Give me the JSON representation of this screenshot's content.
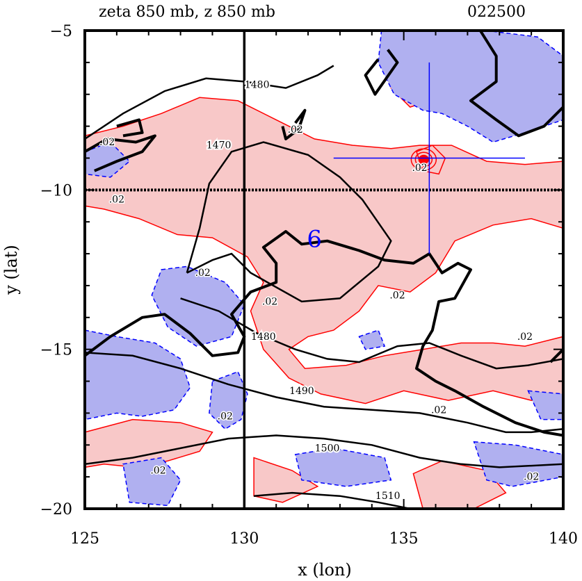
{
  "chart_data": {
    "type": "contour",
    "title": "zeta 850 mb, z 850 mb",
    "time_label": "022500",
    "xlabel": "x (lon)",
    "ylabel": "y (lat)",
    "xlim": [
      125,
      140
    ],
    "ylim": [
      -20,
      -5
    ],
    "x_ticks": [
      125,
      130,
      135,
      140
    ],
    "x_tick_labels": [
      "125",
      "130",
      "135",
      "140"
    ],
    "y_ticks": [
      -5,
      -10,
      -15,
      -20
    ],
    "y_tick_labels": [
      "−5",
      "−10",
      "−15",
      "−20"
    ],
    "reference_lines": {
      "lon": 130,
      "lat": -10
    },
    "storm_symbol": {
      "label": "6",
      "lon": 132.2,
      "lat": -11.6,
      "color": "#0000ff"
    },
    "crosshair": {
      "lon": 135.8,
      "lat": -9.0,
      "lon_range": [
        132.8,
        138.8
      ],
      "lat_range": [
        -12.0,
        -6.0
      ],
      "color": "#0000ff"
    },
    "fill_colors": {
      "positive": "#f8c8c8",
      "negative": "#b0b0f0",
      "positive_line": "#ff0000",
      "negative_line": "#0000ff"
    },
    "height_contours": [
      {
        "value": 1470,
        "label": "1470",
        "label_lon": 129.2,
        "label_lat": -8.7,
        "points": [
          [
            128.2,
            -12.6
          ],
          [
            128.6,
            -11.2
          ],
          [
            128.9,
            -9.8
          ],
          [
            129.6,
            -8.8
          ],
          [
            130.6,
            -8.5
          ],
          [
            132.0,
            -8.9
          ],
          [
            133.0,
            -9.6
          ],
          [
            133.7,
            -10.3
          ],
          [
            134.6,
            -11.6
          ],
          [
            134.2,
            -12.4
          ],
          [
            133.0,
            -13.4
          ],
          [
            131.8,
            -13.5
          ],
          [
            130.2,
            -12.6
          ],
          [
            129.6,
            -12.0
          ],
          [
            129.0,
            -12.2
          ],
          [
            128.2,
            -12.6
          ]
        ]
      },
      {
        "value": 1480,
        "label": "1480",
        "label_lon": 130.4,
        "label_lat": -6.8,
        "points": [
          [
            125.0,
            -8.4
          ],
          [
            126.2,
            -7.6
          ],
          [
            127.5,
            -6.9
          ],
          [
            128.8,
            -6.5
          ],
          [
            130.0,
            -6.6
          ],
          [
            131.3,
            -6.8
          ],
          [
            132.3,
            -6.4
          ],
          [
            132.8,
            -6.1
          ]
        ]
      },
      {
        "value": 1480,
        "label": "1480",
        "label_lon": 130.6,
        "label_lat": -14.7,
        "points": [
          [
            128.0,
            -13.4
          ],
          [
            129.2,
            -13.8
          ],
          [
            130.4,
            -14.5
          ],
          [
            131.6,
            -15.0
          ],
          [
            132.6,
            -15.3
          ],
          [
            133.6,
            -15.4
          ],
          [
            134.8,
            -14.9
          ],
          [
            135.8,
            -14.8
          ],
          [
            136.8,
            -15.2
          ],
          [
            137.9,
            -15.6
          ],
          [
            138.9,
            -15.5
          ],
          [
            140.0,
            -15.3
          ]
        ]
      },
      {
        "value": 1490,
        "label": "1490",
        "label_lon": 131.8,
        "label_lat": -16.4,
        "points": [
          [
            125.0,
            -15.1
          ],
          [
            126.5,
            -15.2
          ],
          [
            128.0,
            -15.6
          ],
          [
            129.5,
            -16.1
          ],
          [
            131.0,
            -16.5
          ],
          [
            132.5,
            -16.8
          ],
          [
            134.0,
            -16.9
          ],
          [
            135.5,
            -17.0
          ],
          [
            137.0,
            -17.3
          ],
          [
            138.2,
            -17.6
          ],
          [
            139.0,
            -17.6
          ],
          [
            140.0,
            -17.5
          ]
        ]
      },
      {
        "value": 1500,
        "label": "1500",
        "label_lon": 132.6,
        "label_lat": -18.2,
        "points": [
          [
            125.0,
            -18.6
          ],
          [
            126.5,
            -18.4
          ],
          [
            128.0,
            -18.1
          ],
          [
            129.5,
            -17.8
          ],
          [
            131.0,
            -17.7
          ],
          [
            132.5,
            -17.8
          ],
          [
            134.0,
            -18.0
          ],
          [
            135.5,
            -18.4
          ],
          [
            136.8,
            -18.6
          ],
          [
            138.0,
            -18.7
          ],
          [
            140.0,
            -18.6
          ]
        ]
      },
      {
        "value": 1510,
        "label": "1510",
        "label_lon": 134.5,
        "label_lat": -19.7,
        "points": [
          [
            130.3,
            -19.6
          ],
          [
            131.5,
            -19.5
          ],
          [
            133.0,
            -19.6
          ],
          [
            134.2,
            -19.8
          ],
          [
            135.2,
            -20.0
          ]
        ]
      }
    ],
    "vorticity_labels": [
      {
        "text": ".02",
        "lon": 131.6,
        "lat": -8.2
      },
      {
        "text": ".02",
        "lon": 125.7,
        "lat": -8.6
      },
      {
        "text": ".02",
        "lon": 126.0,
        "lat": -10.4
      },
      {
        "text": ".02",
        "lon": 135.5,
        "lat": -9.4
      },
      {
        "text": ".02",
        "lon": 128.7,
        "lat": -12.7
      },
      {
        "text": ".02",
        "lon": 130.8,
        "lat": -13.6
      },
      {
        "text": ".02",
        "lon": 134.8,
        "lat": -13.4
      },
      {
        "text": ".02",
        "lon": 136.1,
        "lat": -17.0
      },
      {
        "text": ".02",
        "lon": 129.4,
        "lat": -17.2
      },
      {
        "text": ".02",
        "lon": 127.3,
        "lat": -18.9
      },
      {
        "text": ".02",
        "lon": 139.0,
        "lat": -19.1
      },
      {
        "text": ".02",
        "lon": 138.8,
        "lat": -14.7
      }
    ],
    "positive_regions": [
      [
        [
          125.0,
          -8.3
        ],
        [
          126.2,
          -8.0
        ],
        [
          127.4,
          -7.6
        ],
        [
          128.6,
          -7.1
        ],
        [
          129.8,
          -7.2
        ],
        [
          131.0,
          -7.8
        ],
        [
          132.2,
          -8.4
        ],
        [
          133.4,
          -8.6
        ],
        [
          134.6,
          -8.7
        ],
        [
          135.5,
          -8.6
        ],
        [
          136.5,
          -8.6
        ],
        [
          137.6,
          -9.1
        ],
        [
          138.8,
          -9.2
        ],
        [
          140.0,
          -9.1
        ],
        [
          140.0,
          -11.2
        ],
        [
          139.0,
          -10.9
        ],
        [
          137.8,
          -11.1
        ],
        [
          136.6,
          -11.6
        ],
        [
          136.0,
          -12.6
        ],
        [
          135.2,
          -13.2
        ],
        [
          134.2,
          -13.0
        ],
        [
          133.6,
          -13.8
        ],
        [
          132.8,
          -14.4
        ],
        [
          132.0,
          -14.6
        ],
        [
          131.4,
          -15.0
        ],
        [
          131.9,
          -15.6
        ],
        [
          133.2,
          -15.5
        ],
        [
          134.4,
          -15.2
        ],
        [
          135.6,
          -15.0
        ],
        [
          136.8,
          -14.8
        ],
        [
          137.8,
          -14.8
        ],
        [
          138.8,
          -14.9
        ],
        [
          140.0,
          -14.6
        ],
        [
          140.0,
          -16.6
        ],
        [
          139.0,
          -16.6
        ],
        [
          137.8,
          -16.3
        ],
        [
          136.4,
          -16.6
        ],
        [
          135.0,
          -16.3
        ],
        [
          133.8,
          -16.7
        ],
        [
          132.4,
          -16.4
        ],
        [
          131.4,
          -15.9
        ],
        [
          130.6,
          -15.0
        ],
        [
          130.2,
          -13.8
        ],
        [
          130.6,
          -12.9
        ],
        [
          130.1,
          -12.1
        ],
        [
          129.0,
          -11.5
        ],
        [
          127.9,
          -11.4
        ],
        [
          126.7,
          -10.9
        ],
        [
          125.6,
          -10.6
        ],
        [
          125.0,
          -10.5
        ]
      ],
      [
        [
          135.4,
          -8.8
        ],
        [
          135.9,
          -8.6
        ],
        [
          136.3,
          -9.0
        ],
        [
          136.1,
          -9.5
        ],
        [
          135.6,
          -9.4
        ]
      ],
      [
        [
          125.0,
          -17.6
        ],
        [
          126.5,
          -17.2
        ],
        [
          128.0,
          -17.3
        ],
        [
          129.0,
          -17.6
        ],
        [
          128.6,
          -18.2
        ],
        [
          127.6,
          -18.5
        ],
        [
          126.6,
          -18.7
        ],
        [
          125.6,
          -18.6
        ],
        [
          125.0,
          -18.7
        ]
      ],
      [
        [
          130.3,
          -18.4
        ],
        [
          131.5,
          -18.8
        ],
        [
          132.3,
          -19.3
        ],
        [
          131.2,
          -19.8
        ],
        [
          130.3,
          -19.6
        ]
      ],
      [
        [
          135.3,
          -18.9
        ],
        [
          136.2,
          -18.5
        ],
        [
          137.6,
          -18.8
        ],
        [
          138.2,
          -19.5
        ],
        [
          137.2,
          -20.0
        ],
        [
          135.6,
          -20.0
        ]
      ],
      [
        [
          134.8,
          -6.0
        ],
        [
          135.6,
          -6.4
        ],
        [
          135.8,
          -7.2
        ],
        [
          135.2,
          -7.4
        ],
        [
          134.6,
          -6.8
        ]
      ]
    ],
    "negative_regions": [
      [
        [
          134.3,
          -5.0
        ],
        [
          137.6,
          -5.0
        ],
        [
          139.2,
          -5.2
        ],
        [
          140.0,
          -5.8
        ],
        [
          140.0,
          -7.8
        ],
        [
          138.8,
          -8.2
        ],
        [
          137.8,
          -8.5
        ],
        [
          137.0,
          -8.0
        ],
        [
          136.2,
          -7.6
        ],
        [
          135.6,
          -7.5
        ],
        [
          134.7,
          -7.0
        ],
        [
          134.2,
          -6.0
        ]
      ],
      [
        [
          125.0,
          -8.8
        ],
        [
          125.8,
          -8.5
        ],
        [
          126.4,
          -9.1
        ],
        [
          125.8,
          -9.6
        ],
        [
          125.0,
          -9.5
        ]
      ],
      [
        [
          127.4,
          -12.5
        ],
        [
          128.2,
          -12.4
        ],
        [
          129.4,
          -12.9
        ],
        [
          130.0,
          -13.6
        ],
        [
          129.6,
          -14.6
        ],
        [
          128.5,
          -14.9
        ],
        [
          127.6,
          -14.3
        ],
        [
          127.1,
          -13.3
        ]
      ],
      [
        [
          125.0,
          -14.4
        ],
        [
          126.0,
          -14.6
        ],
        [
          127.2,
          -14.8
        ],
        [
          128.0,
          -15.3
        ],
        [
          128.3,
          -16.2
        ],
        [
          127.8,
          -16.9
        ],
        [
          126.8,
          -17.1
        ],
        [
          126.0,
          -17.0
        ],
        [
          125.0,
          -17.2
        ]
      ],
      [
        [
          129.0,
          -16.0
        ],
        [
          129.8,
          -15.7
        ],
        [
          130.1,
          -16.4
        ],
        [
          129.9,
          -17.2
        ],
        [
          129.4,
          -17.5
        ],
        [
          128.9,
          -17.0
        ]
      ],
      [
        [
          126.2,
          -18.6
        ],
        [
          127.4,
          -18.4
        ],
        [
          128.0,
          -19.1
        ],
        [
          127.6,
          -19.9
        ],
        [
          126.4,
          -19.8
        ]
      ],
      [
        [
          131.6,
          -18.3
        ],
        [
          132.8,
          -18.1
        ],
        [
          134.4,
          -18.4
        ],
        [
          134.6,
          -19.1
        ],
        [
          133.2,
          -19.3
        ],
        [
          131.8,
          -19.1
        ]
      ],
      [
        [
          137.2,
          -17.9
        ],
        [
          138.5,
          -18.0
        ],
        [
          140.0,
          -18.3
        ],
        [
          140.0,
          -19.0
        ],
        [
          138.4,
          -19.3
        ],
        [
          137.6,
          -19.1
        ]
      ],
      [
        [
          138.9,
          -16.3
        ],
        [
          140.0,
          -16.4
        ],
        [
          140.0,
          -17.2
        ],
        [
          139.3,
          -17.2
        ]
      ],
      [
        [
          133.6,
          -14.6
        ],
        [
          134.2,
          -14.4
        ],
        [
          134.4,
          -14.9
        ],
        [
          133.8,
          -15.0
        ]
      ]
    ],
    "coast_outline": [
      [
        [
          125.0,
          -15.2
        ],
        [
          125.8,
          -14.6
        ],
        [
          126.8,
          -14.0
        ],
        [
          127.5,
          -13.9
        ],
        [
          128.3,
          -14.5
        ],
        [
          129.0,
          -15.2
        ],
        [
          129.8,
          -15.1
        ],
        [
          130.0,
          -14.6
        ],
        [
          129.6,
          -13.9
        ],
        [
          130.2,
          -13.2
        ],
        [
          131.0,
          -12.9
        ],
        [
          131.0,
          -12.3
        ],
        [
          130.6,
          -11.8
        ],
        [
          131.3,
          -11.3
        ],
        [
          131.8,
          -11.7
        ],
        [
          132.6,
          -11.6
        ],
        [
          133.6,
          -11.9
        ],
        [
          134.4,
          -12.2
        ],
        [
          135.3,
          -12.3
        ],
        [
          135.8,
          -12.0
        ],
        [
          136.2,
          -12.6
        ],
        [
          136.7,
          -12.3
        ],
        [
          137.1,
          -12.5
        ],
        [
          136.6,
          -13.4
        ],
        [
          136.1,
          -13.5
        ],
        [
          135.9,
          -14.4
        ],
        [
          135.6,
          -14.9
        ],
        [
          135.4,
          -15.6
        ],
        [
          136.0,
          -16.0
        ],
        [
          136.6,
          -16.3
        ],
        [
          137.5,
          -16.8
        ],
        [
          138.5,
          -17.3
        ],
        [
          139.4,
          -17.6
        ],
        [
          140.0,
          -17.7
        ]
      ],
      [
        [
          137.4,
          -5.0
        ],
        [
          137.9,
          -5.8
        ],
        [
          137.9,
          -6.6
        ],
        [
          137.1,
          -7.2
        ],
        [
          137.9,
          -7.8
        ],
        [
          138.6,
          -8.3
        ],
        [
          139.4,
          -8.0
        ],
        [
          140.0,
          -7.4
        ]
      ],
      [
        [
          134.5,
          -5.6
        ],
        [
          134.8,
          -6.0
        ],
        [
          134.1,
          -7.0
        ],
        [
          133.8,
          -6.4
        ],
        [
          134.2,
          -5.9
        ]
      ],
      [
        [
          131.6,
          -7.9
        ],
        [
          131.9,
          -7.5
        ],
        [
          131.7,
          -8.1
        ],
        [
          131.3,
          -8.4
        ],
        [
          131.2,
          -8.0
        ]
      ],
      [
        [
          125.0,
          -8.8
        ],
        [
          125.7,
          -8.4
        ],
        [
          126.6,
          -8.5
        ],
        [
          127.2,
          -8.3
        ],
        [
          126.8,
          -8.8
        ],
        [
          126.0,
          -9.1
        ],
        [
          125.3,
          -9.4
        ]
      ],
      [
        [
          126.0,
          -8.0
        ],
        [
          126.7,
          -7.8
        ],
        [
          126.8,
          -8.2
        ],
        [
          126.2,
          -8.3
        ]
      ],
      [
        [
          139.6,
          -15.4
        ],
        [
          140.0,
          -15.0
        ],
        [
          140.0,
          -15.8
        ]
      ]
    ]
  }
}
